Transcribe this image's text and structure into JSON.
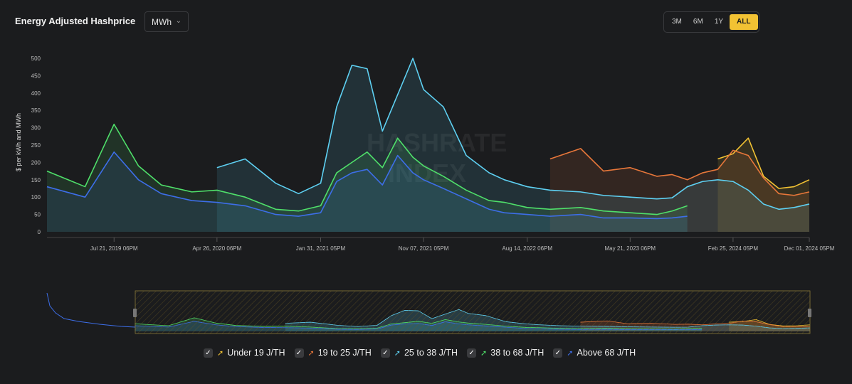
{
  "header": {
    "title": "Energy Adjusted Hashprice",
    "unit_select": "MWh"
  },
  "range_buttons": [
    {
      "label": "3M",
      "active": false
    },
    {
      "label": "6M",
      "active": false
    },
    {
      "label": "1Y",
      "active": false
    },
    {
      "label": "ALL",
      "active": true
    }
  ],
  "watermark": {
    "line1": "HASHRATE",
    "line2": "INDEX"
  },
  "chart_data": {
    "type": "area",
    "title": "Energy Adjusted Hashprice",
    "ylabel": "$ per kWh and MWh",
    "xlabel": "",
    "ylim": [
      0,
      500
    ],
    "yticks": [
      0,
      50,
      100,
      150,
      200,
      250,
      300,
      350,
      400,
      450,
      500
    ],
    "xticks": [
      {
        "label": "Jul 21, 2019 06PM",
        "t": 0.088
      },
      {
        "label": "Apr 26, 2020 06PM",
        "t": 0.223
      },
      {
        "label": "Jan 31, 2021 05PM",
        "t": 0.359
      },
      {
        "label": "Nov 07, 2021 05PM",
        "t": 0.494
      },
      {
        "label": "Aug 14, 2022 06PM",
        "t": 0.63
      },
      {
        "label": "May 21, 2023 06PM",
        "t": 0.765
      },
      {
        "label": "Feb 25, 2024 05PM",
        "t": 0.9
      },
      {
        "label": "Dec 01, 2024 05PM",
        "t": 1.0
      }
    ],
    "x_fraction": [
      0.0,
      0.05,
      0.088,
      0.12,
      0.15,
      0.19,
      0.223,
      0.26,
      0.3,
      0.33,
      0.359,
      0.38,
      0.4,
      0.42,
      0.44,
      0.46,
      0.48,
      0.494,
      0.52,
      0.55,
      0.58,
      0.6,
      0.63,
      0.66,
      0.7,
      0.73,
      0.765,
      0.8,
      0.82,
      0.84,
      0.86,
      0.88,
      0.9,
      0.92,
      0.94,
      0.96,
      0.98,
      1.0
    ],
    "series": [
      {
        "name": "Under 19 J/TH",
        "color": "#f2c233",
        "values": [
          null,
          null,
          null,
          null,
          null,
          null,
          null,
          null,
          null,
          null,
          null,
          null,
          null,
          null,
          null,
          null,
          null,
          null,
          null,
          null,
          null,
          null,
          null,
          null,
          null,
          null,
          null,
          null,
          null,
          null,
          null,
          210,
          225,
          270,
          160,
          125,
          130,
          150
        ]
      },
      {
        "name": "19 to 25 J/TH",
        "color": "#e8773a",
        "values": [
          null,
          null,
          null,
          null,
          null,
          null,
          null,
          null,
          null,
          null,
          null,
          null,
          null,
          null,
          null,
          null,
          null,
          null,
          null,
          null,
          null,
          null,
          null,
          210,
          240,
          175,
          185,
          160,
          165,
          150,
          170,
          180,
          235,
          220,
          155,
          110,
          105,
          115
        ]
      },
      {
        "name": "25 to 38 J/TH",
        "color": "#5ed0f2",
        "values": [
          null,
          null,
          null,
          null,
          null,
          null,
          185,
          210,
          140,
          110,
          140,
          360,
          480,
          470,
          290,
          395,
          500,
          410,
          360,
          220,
          170,
          150,
          130,
          120,
          115,
          105,
          100,
          95,
          98,
          130,
          145,
          150,
          145,
          120,
          80,
          65,
          70,
          80
        ]
      },
      {
        "name": "38 to 68 J/TH",
        "color": "#4fe06a",
        "values": [
          175,
          130,
          310,
          190,
          135,
          115,
          120,
          100,
          65,
          60,
          75,
          170,
          200,
          230,
          185,
          270,
          215,
          190,
          160,
          120,
          90,
          85,
          70,
          65,
          70,
          60,
          55,
          50,
          60,
          75,
          null,
          null,
          null,
          null,
          null,
          null,
          null,
          null
        ]
      },
      {
        "name": "Above 68 J/TH",
        "color": "#3d6ee8",
        "values": [
          130,
          100,
          230,
          150,
          110,
          90,
          85,
          75,
          50,
          45,
          55,
          145,
          170,
          180,
          135,
          220,
          170,
          150,
          125,
          95,
          65,
          55,
          50,
          45,
          50,
          40,
          40,
          38,
          40,
          45,
          null,
          null,
          null,
          null,
          null,
          null,
          null,
          null
        ]
      }
    ]
  },
  "legend": [
    {
      "label": "Under 19 J/TH",
      "color": "#f2c233",
      "checked": true
    },
    {
      "label": "19 to 25 J/TH",
      "color": "#e8773a",
      "checked": true
    },
    {
      "label": "25 to 38 J/TH",
      "color": "#5ed0f2",
      "checked": true
    },
    {
      "label": "38 to 68 J/TH",
      "color": "#4fe06a",
      "checked": true
    },
    {
      "label": "Above 68 J/TH",
      "color": "#3d6ee8",
      "checked": true
    }
  ]
}
